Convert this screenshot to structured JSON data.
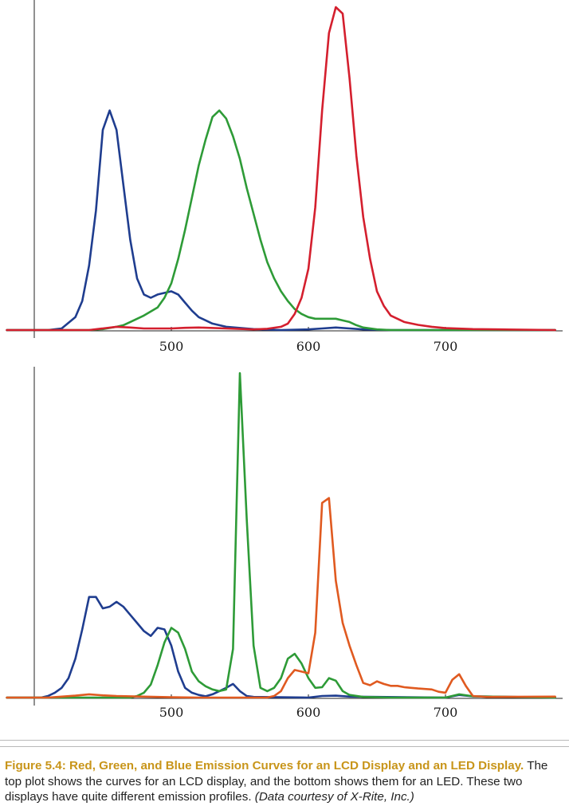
{
  "chart_data": [
    {
      "type": "line",
      "xlim": [
        400,
        780
      ],
      "ylim": [
        0,
        1
      ],
      "x_ticks": [
        500,
        600,
        700
      ],
      "grid": false,
      "series": [
        {
          "color": "#1f3d8f",
          "points": [
            [
              380,
              0
            ],
            [
              410,
              0
            ],
            [
              420,
              0.005
            ],
            [
              430,
              0.04
            ],
            [
              435,
              0.09
            ],
            [
              440,
              0.2
            ],
            [
              445,
              0.37
            ],
            [
              450,
              0.62
            ],
            [
              455,
              0.68
            ],
            [
              460,
              0.62
            ],
            [
              465,
              0.45
            ],
            [
              470,
              0.28
            ],
            [
              475,
              0.16
            ],
            [
              480,
              0.11
            ],
            [
              485,
              0.1
            ],
            [
              490,
              0.11
            ],
            [
              495,
              0.115
            ],
            [
              500,
              0.12
            ],
            [
              505,
              0.11
            ],
            [
              510,
              0.085
            ],
            [
              515,
              0.06
            ],
            [
              520,
              0.04
            ],
            [
              530,
              0.02
            ],
            [
              540,
              0.01
            ],
            [
              560,
              0.003
            ],
            [
              580,
              0
            ],
            [
              600,
              0.002
            ],
            [
              610,
              0.005
            ],
            [
              620,
              0.008
            ],
            [
              630,
              0.005
            ],
            [
              640,
              0.002
            ],
            [
              660,
              0
            ],
            [
              780,
              0
            ]
          ]
        },
        {
          "color": "#2e9b37",
          "points": [
            [
              380,
              0
            ],
            [
              440,
              0
            ],
            [
              450,
              0.003
            ],
            [
              460,
              0.01
            ],
            [
              465,
              0.015
            ],
            [
              470,
              0.025
            ],
            [
              480,
              0.045
            ],
            [
              490,
              0.07
            ],
            [
              495,
              0.1
            ],
            [
              500,
              0.145
            ],
            [
              505,
              0.22
            ],
            [
              510,
              0.31
            ],
            [
              515,
              0.41
            ],
            [
              520,
              0.51
            ],
            [
              525,
              0.59
            ],
            [
              530,
              0.66
            ],
            [
              535,
              0.68
            ],
            [
              540,
              0.655
            ],
            [
              545,
              0.6
            ],
            [
              550,
              0.53
            ],
            [
              555,
              0.44
            ],
            [
              560,
              0.36
            ],
            [
              565,
              0.28
            ],
            [
              570,
              0.21
            ],
            [
              575,
              0.16
            ],
            [
              580,
              0.12
            ],
            [
              585,
              0.09
            ],
            [
              590,
              0.065
            ],
            [
              595,
              0.05
            ],
            [
              600,
              0.04
            ],
            [
              605,
              0.035
            ],
            [
              610,
              0.035
            ],
            [
              615,
              0.035
            ],
            [
              620,
              0.035
            ],
            [
              625,
              0.03
            ],
            [
              630,
              0.025
            ],
            [
              635,
              0.015
            ],
            [
              640,
              0.008
            ],
            [
              650,
              0.002
            ],
            [
              660,
              0
            ],
            [
              780,
              0
            ]
          ]
        },
        {
          "color": "#d41f2e",
          "points": [
            [
              380,
              0
            ],
            [
              440,
              0
            ],
            [
              450,
              0.005
            ],
            [
              460,
              0.01
            ],
            [
              470,
              0.008
            ],
            [
              480,
              0.005
            ],
            [
              500,
              0.005
            ],
            [
              510,
              0.007
            ],
            [
              520,
              0.008
            ],
            [
              540,
              0.005
            ],
            [
              560,
              0.002
            ],
            [
              570,
              0.004
            ],
            [
              580,
              0.01
            ],
            [
              585,
              0.02
            ],
            [
              590,
              0.05
            ],
            [
              595,
              0.1
            ],
            [
              600,
              0.19
            ],
            [
              605,
              0.38
            ],
            [
              610,
              0.68
            ],
            [
              615,
              0.92
            ],
            [
              620,
              1.0
            ],
            [
              625,
              0.98
            ],
            [
              630,
              0.78
            ],
            [
              635,
              0.54
            ],
            [
              640,
              0.35
            ],
            [
              645,
              0.22
            ],
            [
              650,
              0.12
            ],
            [
              655,
              0.075
            ],
            [
              660,
              0.045
            ],
            [
              670,
              0.025
            ],
            [
              680,
              0.016
            ],
            [
              690,
              0.01
            ],
            [
              700,
              0.006
            ],
            [
              720,
              0.003
            ],
            [
              740,
              0.002
            ],
            [
              780,
              0
            ]
          ]
        }
      ]
    },
    {
      "type": "line",
      "xlim": [
        400,
        780
      ],
      "ylim": [
        0,
        1
      ],
      "x_ticks": [
        500,
        600,
        700
      ],
      "grid": false,
      "series": [
        {
          "color": "#1f3d8f",
          "points": [
            [
              380,
              0
            ],
            [
              405,
              0
            ],
            [
              410,
              0.005
            ],
            [
              415,
              0.015
            ],
            [
              420,
              0.03
            ],
            [
              425,
              0.06
            ],
            [
              430,
              0.12
            ],
            [
              435,
              0.21
            ],
            [
              440,
              0.31
            ],
            [
              445,
              0.31
            ],
            [
              450,
              0.275
            ],
            [
              455,
              0.28
            ],
            [
              460,
              0.295
            ],
            [
              465,
              0.28
            ],
            [
              470,
              0.255
            ],
            [
              475,
              0.23
            ],
            [
              480,
              0.205
            ],
            [
              485,
              0.19
            ],
            [
              490,
              0.215
            ],
            [
              495,
              0.21
            ],
            [
              500,
              0.16
            ],
            [
              505,
              0.08
            ],
            [
              510,
              0.03
            ],
            [
              515,
              0.015
            ],
            [
              520,
              0.008
            ],
            [
              525,
              0.004
            ],
            [
              530,
              0.01
            ],
            [
              535,
              0.02
            ],
            [
              540,
              0.03
            ],
            [
              545,
              0.042
            ],
            [
              550,
              0.02
            ],
            [
              555,
              0.005
            ],
            [
              560,
              0.002
            ],
            [
              600,
              0
            ],
            [
              610,
              0.005
            ],
            [
              620,
              0.006
            ],
            [
              630,
              0.003
            ],
            [
              700,
              0
            ],
            [
              710,
              0.008
            ],
            [
              720,
              0.004
            ],
            [
              780,
              0
            ]
          ]
        },
        {
          "color": "#2e9b37",
          "points": [
            [
              380,
              0
            ],
            [
              470,
              0
            ],
            [
              475,
              0.005
            ],
            [
              480,
              0.015
            ],
            [
              485,
              0.04
            ],
            [
              490,
              0.1
            ],
            [
              495,
              0.17
            ],
            [
              500,
              0.215
            ],
            [
              505,
              0.2
            ],
            [
              510,
              0.15
            ],
            [
              515,
              0.08
            ],
            [
              520,
              0.05
            ],
            [
              525,
              0.035
            ],
            [
              530,
              0.025
            ],
            [
              535,
              0.02
            ],
            [
              540,
              0.025
            ],
            [
              545,
              0.15
            ],
            [
              550,
              1.0
            ],
            [
              555,
              0.55
            ],
            [
              560,
              0.16
            ],
            [
              565,
              0.03
            ],
            [
              570,
              0.02
            ],
            [
              575,
              0.03
            ],
            [
              580,
              0.06
            ],
            [
              585,
              0.12
            ],
            [
              590,
              0.135
            ],
            [
              595,
              0.105
            ],
            [
              600,
              0.06
            ],
            [
              605,
              0.03
            ],
            [
              610,
              0.032
            ],
            [
              615,
              0.06
            ],
            [
              620,
              0.052
            ],
            [
              625,
              0.02
            ],
            [
              630,
              0.008
            ],
            [
              640,
              0.002
            ],
            [
              660,
              0
            ],
            [
              700,
              0
            ],
            [
              710,
              0.01
            ],
            [
              720,
              0.004
            ],
            [
              780,
              0
            ]
          ]
        },
        {
          "color": "#e05a20",
          "points": [
            [
              380,
              0
            ],
            [
              410,
              0
            ],
            [
              420,
              0.003
            ],
            [
              430,
              0.006
            ],
            [
              440,
              0.01
            ],
            [
              450,
              0.007
            ],
            [
              460,
              0.005
            ],
            [
              480,
              0.003
            ],
            [
              500,
              0.001
            ],
            [
              520,
              0
            ],
            [
              570,
              0
            ],
            [
              575,
              0.005
            ],
            [
              580,
              0.02
            ],
            [
              585,
              0.06
            ],
            [
              590,
              0.085
            ],
            [
              595,
              0.08
            ],
            [
              600,
              0.075
            ],
            [
              605,
              0.2
            ],
            [
              610,
              0.6
            ],
            [
              615,
              0.615
            ],
            [
              620,
              0.36
            ],
            [
              625,
              0.23
            ],
            [
              630,
              0.16
            ],
            [
              635,
              0.1
            ],
            [
              640,
              0.045
            ],
            [
              645,
              0.038
            ],
            [
              650,
              0.05
            ],
            [
              655,
              0.042
            ],
            [
              660,
              0.036
            ],
            [
              665,
              0.036
            ],
            [
              670,
              0.032
            ],
            [
              675,
              0.03
            ],
            [
              680,
              0.028
            ],
            [
              690,
              0.025
            ],
            [
              695,
              0.018
            ],
            [
              700,
              0.015
            ],
            [
              705,
              0.055
            ],
            [
              710,
              0.072
            ],
            [
              715,
              0.035
            ],
            [
              720,
              0.005
            ],
            [
              730,
              0.002
            ],
            [
              780,
              0.003
            ]
          ]
        }
      ]
    }
  ],
  "caption": {
    "title": "Figure 5.4: Red, Green, and Blue Emission Curves for an LCD Display and an LED Display.",
    "body": "The top plot shows the curves for an LCD display, and the bottom shows them for an LED. These two displays have quite different emission profiles.",
    "credit": "(Data courtesy of X-Rite, Inc.)"
  }
}
